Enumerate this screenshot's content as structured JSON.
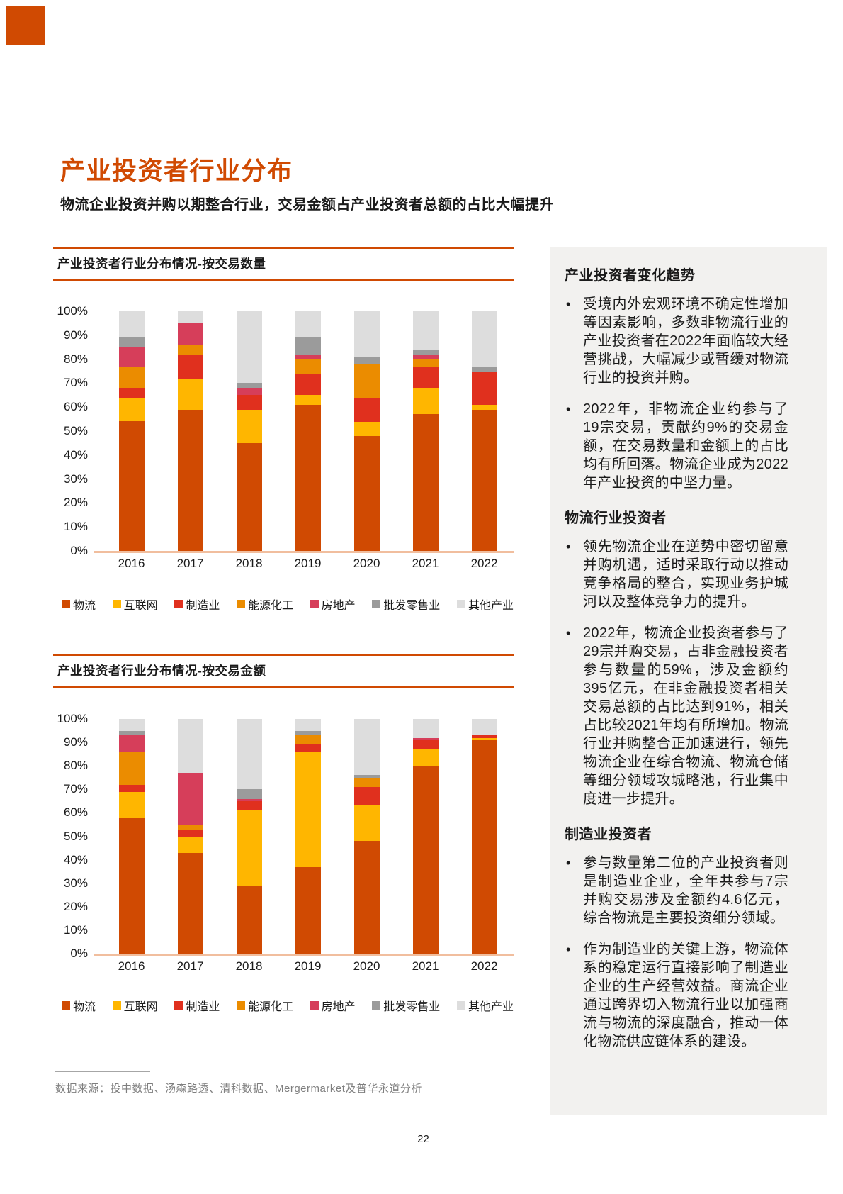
{
  "brand": {
    "corner_square_color": "#D04A02"
  },
  "page": {
    "title": "产业投资者行业分布",
    "subtitle": "物流企业投资并购以期整合行业，交易金额占产业投资者总额的占比大幅提升",
    "source_note": "数据来源：投中数据、汤森路透、清科数据、Mergermarket及普华永道分析",
    "page_number": "22"
  },
  "colors": {
    "accent": "#D04A02",
    "axis_baseline": "#F1BE9E",
    "sidebar_bg": "#F2F1EF",
    "footer_text": "#7F7F7F",
    "series": {
      "物流": "#D04A02",
      "互联网": "#FFB600",
      "制造业": "#E0301E",
      "能源化工": "#EB8C00",
      "房地产": "#D63E5A",
      "批发零售业": "#9B9B9B",
      "其他产业": "#DDDDDD"
    }
  },
  "legend": [
    "物流",
    "互联网",
    "制造业",
    "能源化工",
    "房地产",
    "批发零售业",
    "其他产业"
  ],
  "chart_data": [
    {
      "type": "bar",
      "stacked": true,
      "unit": "percent",
      "title": "产业投资者行业分布情况-按交易数量",
      "categories": [
        "2016",
        "2017",
        "2018",
        "2019",
        "2020",
        "2021",
        "2022"
      ],
      "series": [
        {
          "name": "物流",
          "values": [
            54,
            59,
            45,
            61,
            48,
            57,
            59
          ]
        },
        {
          "name": "互联网",
          "values": [
            10,
            13,
            14,
            4,
            6,
            11,
            2
          ]
        },
        {
          "name": "制造业",
          "values": [
            4,
            10,
            6,
            9,
            10,
            9,
            14
          ]
        },
        {
          "name": "能源化工",
          "values": [
            9,
            4,
            0,
            6,
            14,
            3,
            0
          ]
        },
        {
          "name": "房地产",
          "values": [
            8,
            9,
            3,
            2,
            0,
            2,
            0
          ]
        },
        {
          "name": "批发零售业",
          "values": [
            4,
            0,
            2,
            7,
            3,
            2,
            2
          ]
        },
        {
          "name": "其他产业",
          "values": [
            11,
            5,
            30,
            11,
            19,
            16,
            23
          ]
        }
      ],
      "ylim": [
        0,
        100
      ],
      "ytick_step": 10,
      "ytick_suffix": "%",
      "grid": false,
      "legend_position": "bottom"
    },
    {
      "type": "bar",
      "stacked": true,
      "unit": "percent",
      "title": "产业投资者行业分布情况-按交易金额",
      "categories": [
        "2016",
        "2017",
        "2018",
        "2019",
        "2020",
        "2021",
        "2022"
      ],
      "series": [
        {
          "name": "物流",
          "values": [
            58,
            43,
            29,
            37,
            48,
            80,
            91
          ]
        },
        {
          "name": "互联网",
          "values": [
            11,
            7,
            32,
            49,
            15,
            7,
            1
          ]
        },
        {
          "name": "制造业",
          "values": [
            3,
            3,
            4,
            3,
            8,
            4,
            1
          ]
        },
        {
          "name": "能源化工",
          "values": [
            14,
            2,
            0,
            4,
            4,
            0,
            0
          ]
        },
        {
          "name": "房地产",
          "values": [
            7,
            22,
            1,
            0,
            0,
            1,
            0
          ]
        },
        {
          "name": "批发零售业",
          "values": [
            2,
            0,
            4,
            2,
            1,
            0,
            0
          ]
        },
        {
          "name": "其他产业",
          "values": [
            5,
            23,
            30,
            5,
            24,
            8,
            7
          ]
        }
      ],
      "ylim": [
        0,
        100
      ],
      "ytick_step": 10,
      "ytick_suffix": "%",
      "grid": false,
      "legend_position": "bottom"
    }
  ],
  "sidebar": {
    "sections": [
      {
        "heading": "产业投资者变化趋势",
        "bullets": [
          "受境内外宏观环境不确定性增加等因素影响，多数非物流行业的产业投资者在2022年面临较大经营挑战，大幅减少或暂缓对物流行业的投资并购。",
          "2022年，非物流企业约参与了19宗交易，贡献约9%的交易金额，在交易数量和金额上的占比均有所回落。物流企业成为2022年产业投资的中坚力量。"
        ]
      },
      {
        "heading": "物流行业投资者",
        "bullets": [
          "领先物流企业在逆势中密切留意并购机遇，适时采取行动以推动竞争格局的整合，实现业务护城河以及整体竞争力的提升。",
          "2022年，物流企业投资者参与了29宗并购交易，占非金融投资者参与数量的59%，涉及金额约395亿元，在非金融投资者相关交易总额的占比达到91%，相关占比较2021年均有所增加。物流行业并购整合正加速进行，领先物流企业在综合物流、物流仓储等细分领域攻城略池，行业集中度进一步提升。"
        ]
      },
      {
        "heading": "制造业投资者",
        "bullets": [
          "参与数量第二位的产业投资者则是制造业企业，全年共参与7宗并购交易涉及金额约4.6亿元，综合物流是主要投资细分领域。",
          "作为制造业的关键上游，物流体系的稳定运行直接影响了制造业企业的生产经营效益。商流企业通过跨界切入物流行业以加强商流与物流的深度融合，推动一体化物流供应链体系的建设。"
        ]
      }
    ]
  }
}
